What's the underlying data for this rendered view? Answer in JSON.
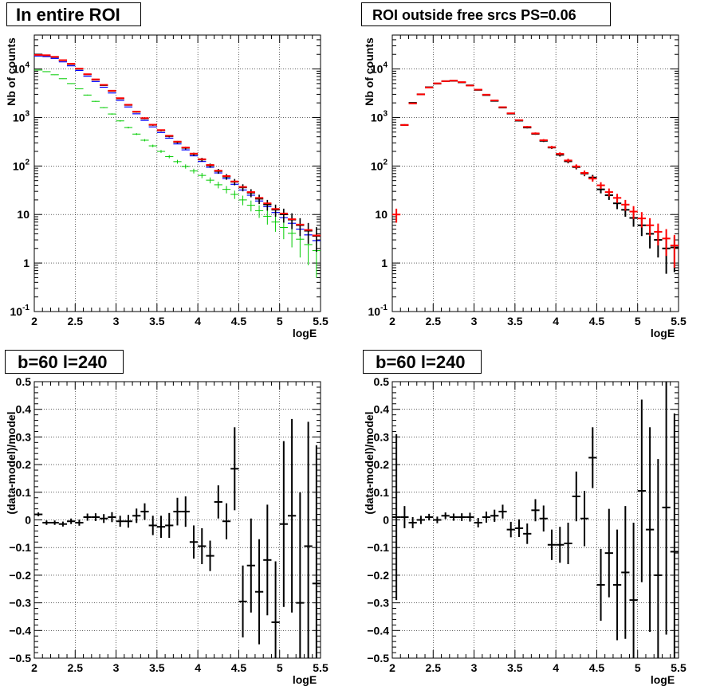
{
  "charts_meta": {
    "count": 4
  },
  "chart_data": [
    {
      "type": "scatter",
      "title": "In entire ROI",
      "xlabel": "logE",
      "ylabel": "Nb of counts",
      "xlim": [
        2,
        5.5
      ],
      "ylim": [
        0.1,
        50000
      ],
      "yscale": "log",
      "grid": true,
      "x_ticks": [
        "2",
        "2.5",
        "3",
        "3.5",
        "4",
        "4.5",
        "5",
        "5.5"
      ],
      "y_ticks": [
        "10^-1",
        "1",
        "10",
        "10^2",
        "10^3",
        "10^4"
      ],
      "colors": {
        "data": "#000000",
        "model": "#ff0000",
        "source": "#0000ff",
        "diffuse": "#00cc00"
      },
      "x": [
        2.05,
        2.15,
        2.25,
        2.35,
        2.45,
        2.55,
        2.65,
        2.75,
        2.85,
        2.95,
        3.05,
        3.15,
        3.25,
        3.35,
        3.45,
        3.55,
        3.65,
        3.75,
        3.85,
        3.95,
        4.05,
        4.15,
        4.25,
        4.35,
        4.45,
        4.55,
        4.65,
        4.75,
        4.85,
        4.95,
        5.05,
        5.15,
        5.25,
        5.35,
        5.45
      ],
      "series": [
        {
          "values": [
            20000,
            19000,
            17500,
            15000,
            12500,
            10000,
            7700,
            6000,
            4600,
            3500,
            2450,
            1800,
            1300,
            950,
            700,
            540,
            410,
            310,
            235,
            175,
            135,
            102,
            78,
            60,
            47,
            36,
            28,
            21,
            16,
            12.5,
            10,
            7.8,
            6,
            4.6,
            3.6
          ],
          "errors": [
            140,
            138,
            132,
            122,
            112,
            100,
            88,
            77,
            68,
            59,
            50,
            42,
            36,
            31,
            26,
            23,
            20,
            18,
            15,
            13,
            12,
            10,
            9,
            8,
            7,
            6,
            5.3,
            4.6,
            4,
            3.5,
            3.2,
            2.8,
            2.4,
            2.1,
            1.9
          ]
        },
        {
          "values": [
            19500,
            19200,
            17800,
            15200,
            12800,
            10200,
            7800,
            6100,
            4700,
            3560,
            2500,
            1830,
            1320,
            970,
            710,
            550,
            420,
            318,
            240,
            180,
            138,
            105,
            80,
            62,
            48,
            37,
            29,
            22,
            17,
            13,
            10.5,
            8,
            6.2,
            4.8,
            3.7
          ]
        },
        {
          "values": [
            18500,
            18000,
            16500,
            14000,
            11600,
            9300,
            7100,
            5500,
            4200,
            3200,
            2250,
            1650,
            1190,
            870,
            640,
            490,
            375,
            285,
            215,
            162,
            124,
            94,
            72,
            55,
            42,
            32,
            25,
            19,
            14.5,
            11,
            8.6,
            6.6,
            5,
            3.8,
            2.9
          ]
        },
        {
          "values": [
            9500,
            8800,
            7600,
            6300,
            5000,
            3900,
            2900,
            2150,
            1600,
            1180,
            850,
            620,
            455,
            340,
            260,
            200,
            156,
            123,
            98,
            79,
            64,
            51,
            41,
            33,
            26,
            20,
            15.5,
            12,
            9.2,
            7,
            5.4,
            4.1,
            3.1,
            2.4,
            1.8
          ],
          "errors": [
            95,
            92,
            86,
            78,
            70,
            62,
            53,
            46,
            40,
            34,
            29,
            25,
            21,
            18,
            16,
            14,
            12,
            11,
            9.9,
            8.8,
            8,
            7.1,
            6.4,
            5.7,
            5.1,
            4.5,
            3.9,
            3.5,
            3,
            2.6,
            2.3,
            2,
            1.8,
            1.5,
            1.3
          ]
        }
      ]
    },
    {
      "type": "scatter",
      "title": "ROI outside free srcs PS=0.06",
      "xlabel": "logE",
      "ylabel": "Nb of counts",
      "xlim": [
        2,
        5.5
      ],
      "ylim": [
        0.1,
        50000
      ],
      "yscale": "log",
      "grid": true,
      "x_ticks": [
        "2",
        "2.5",
        "3",
        "3.5",
        "4",
        "4.5",
        "5",
        "5.5"
      ],
      "y_ticks": [
        "10^-1",
        "1",
        "10",
        "10^2",
        "10^3",
        "10^4"
      ],
      "colors": {
        "data": "#000000",
        "model": "#ff0000"
      },
      "x": [
        2.05,
        2.15,
        2.25,
        2.35,
        2.45,
        2.55,
        2.65,
        2.75,
        2.85,
        2.95,
        3.05,
        3.15,
        3.25,
        3.35,
        3.45,
        3.55,
        3.65,
        3.75,
        3.85,
        3.95,
        4.05,
        4.15,
        4.25,
        4.35,
        4.45,
        4.55,
        4.65,
        4.75,
        4.85,
        4.95,
        5.05,
        5.15,
        5.25,
        5.35,
        5.45
      ],
      "series": [
        {
          "values": [
            null,
            700,
            2000,
            3000,
            4200,
            5000,
            5600,
            5700,
            5300,
            4600,
            3700,
            2900,
            2200,
            1600,
            1200,
            860,
            620,
            460,
            330,
            240,
            170,
            125,
            95,
            70,
            58,
            33,
            25,
            17,
            12.5,
            8.5,
            6,
            4,
            3,
            2,
            2.1
          ],
          "errors": [
            0,
            26,
            45,
            55,
            65,
            71,
            75,
            75,
            73,
            68,
            61,
            54,
            47,
            40,
            35,
            29,
            25,
            21,
            18,
            15,
            13,
            11,
            9.7,
            8.4,
            7.6,
            5.7,
            5,
            4.1,
            3.5,
            2.9,
            2.4,
            2,
            1.7,
            1.4,
            1.45
          ]
        },
        {
          "values": [
            10,
            700,
            1950,
            3000,
            4150,
            5050,
            5600,
            5750,
            5350,
            4550,
            3750,
            2950,
            2250,
            1630,
            1220,
            880,
            640,
            470,
            340,
            245,
            178,
            130,
            98,
            72,
            55,
            40,
            29,
            22,
            16,
            11.5,
            8.3,
            6,
            4.4,
            3.2,
            2.3
          ],
          "errors": [
            3.2,
            26,
            44,
            55,
            64,
            71,
            75,
            76,
            73,
            67,
            61,
            54,
            47,
            40,
            35,
            30,
            25,
            22,
            18,
            16,
            13,
            11,
            9.9,
            8.5,
            7.4,
            6.3,
            5.4,
            4.7,
            4,
            3.4,
            2.9,
            2.4,
            2.1,
            1.8,
            1.5
          ]
        }
      ]
    },
    {
      "type": "scatter",
      "title": "b=60 l=240",
      "xlabel": "logE",
      "ylabel": "(data-model)/model",
      "xlim": [
        2,
        5.5
      ],
      "ylim": [
        -0.5,
        0.5
      ],
      "grid": true,
      "x_ticks": [
        "2",
        "2.5",
        "3",
        "3.5",
        "4",
        "4.5",
        "5",
        "5.5"
      ],
      "y_ticks": [
        "−0.5",
        "−0.4",
        "−0.3",
        "−0.2",
        "−0.1",
        "0",
        "0.1",
        "0.2",
        "0.3",
        "0.4",
        "0.5"
      ],
      "x": [
        2.05,
        2.15,
        2.25,
        2.35,
        2.45,
        2.55,
        2.65,
        2.75,
        2.85,
        2.95,
        3.05,
        3.15,
        3.25,
        3.35,
        3.45,
        3.55,
        3.65,
        3.75,
        3.85,
        3.95,
        4.05,
        4.15,
        4.25,
        4.35,
        4.45,
        4.55,
        4.65,
        4.75,
        4.85,
        4.95,
        5.05,
        5.15,
        5.25,
        5.35,
        5.45
      ],
      "series": [
        {
          "values": [
            0.02,
            -0.01,
            -0.01,
            -0.015,
            -0.005,
            -0.01,
            0.01,
            0.01,
            0.005,
            0.01,
            -0.005,
            -0.005,
            0.015,
            0.03,
            -0.02,
            -0.025,
            -0.02,
            0.03,
            0.03,
            -0.08,
            -0.095,
            -0.13,
            0.065,
            -0.005,
            0.185,
            -0.295,
            -0.165,
            -0.26,
            -0.145,
            -0.37,
            -0.015,
            0.015,
            -0.3,
            -0.095,
            -0.23
          ],
          "errors": [
            0.007,
            0.008,
            0.008,
            0.009,
            0.01,
            0.011,
            0.013,
            0.014,
            0.016,
            0.018,
            0.02,
            0.023,
            0.026,
            0.03,
            0.035,
            0.04,
            0.045,
            0.05,
            0.055,
            0.06,
            0.065,
            0.055,
            0.06,
            0.065,
            0.15,
            0.13,
            0.17,
            0.19,
            0.2,
            0.22,
            0.3,
            0.35,
            0.4,
            0.45,
            0.5
          ]
        }
      ]
    },
    {
      "type": "scatter",
      "title": "b=60 l=240",
      "xlabel": "logE",
      "ylabel": "(data-model)/model",
      "xlim": [
        2,
        5.5
      ],
      "ylim": [
        -0.5,
        0.5
      ],
      "grid": true,
      "x_ticks": [
        "2",
        "2.5",
        "3",
        "3.5",
        "4",
        "4.5",
        "5",
        "5.5"
      ],
      "y_ticks": [
        "−0.5",
        "−0.4",
        "−0.3",
        "−0.2",
        "−0.1",
        "0",
        "0.1",
        "0.2",
        "0.3",
        "0.4",
        "0.5"
      ],
      "x": [
        2.05,
        2.15,
        2.25,
        2.35,
        2.45,
        2.55,
        2.65,
        2.75,
        2.85,
        2.95,
        3.05,
        3.15,
        3.25,
        3.35,
        3.45,
        3.55,
        3.65,
        3.75,
        3.85,
        3.95,
        4.05,
        4.15,
        4.25,
        4.35,
        4.45,
        4.55,
        4.65,
        4.75,
        4.85,
        4.95,
        5.05,
        5.15,
        5.25,
        5.35,
        5.45
      ],
      "series": [
        {
          "values": [
            0.01,
            0.01,
            -0.01,
            0.0,
            0.01,
            0.0,
            0.015,
            0.01,
            0.01,
            0.01,
            -0.01,
            0.01,
            0.015,
            0.03,
            -0.035,
            -0.03,
            -0.05,
            0.035,
            0.005,
            -0.09,
            -0.09,
            -0.085,
            0.085,
            0.005,
            0.225,
            -0.235,
            -0.12,
            -0.235,
            -0.19,
            -0.29,
            0.105,
            -0.035,
            -0.2,
            0.045,
            -0.115
          ],
          "errors": [
            0.3,
            0.04,
            0.02,
            0.015,
            0.012,
            0.012,
            0.012,
            0.013,
            0.014,
            0.016,
            0.017,
            0.02,
            0.022,
            0.025,
            0.028,
            0.032,
            0.037,
            0.04,
            0.047,
            0.055,
            0.065,
            0.075,
            0.09,
            0.1,
            0.11,
            0.13,
            0.16,
            0.2,
            0.24,
            0.28,
            0.33,
            0.37,
            0.42,
            0.46,
            0.5
          ]
        }
      ]
    }
  ]
}
